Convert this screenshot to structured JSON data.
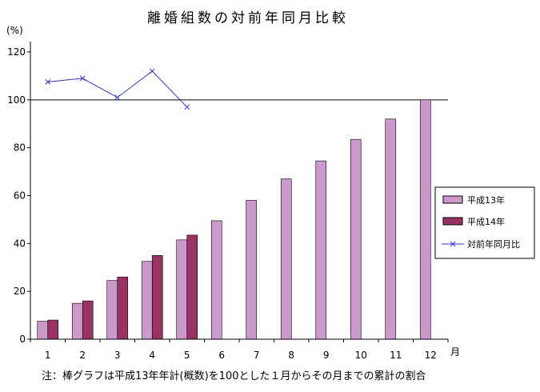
{
  "chart_data": {
    "type": "bar",
    "title": "離婚組数の対前年同月比較",
    "y_unit_label": "(%)",
    "x_unit_label": "月",
    "note": "注：棒グラフは平成13年年計(概数)を100とした１月からその月までの累計の割合",
    "categories": [
      "1",
      "2",
      "3",
      "4",
      "5",
      "6",
      "7",
      "8",
      "9",
      "10",
      "11",
      "12"
    ],
    "ylim": [
      0,
      120
    ],
    "yticks": [
      0,
      20,
      40,
      60,
      80,
      100,
      120
    ],
    "reference_line": 100,
    "grid": false,
    "legend_position": "right",
    "series": [
      {
        "name": "平成13年",
        "kind": "bar",
        "color": "#cc99cc",
        "values": [
          7.5,
          15,
          24.5,
          32.5,
          41.5,
          49.5,
          58,
          67,
          74.5,
          83.5,
          92,
          100
        ]
      },
      {
        "name": "平成14年",
        "kind": "bar",
        "color": "#993366",
        "values": [
          8,
          16,
          26,
          35,
          43.5,
          null,
          null,
          null,
          null,
          null,
          null,
          null
        ]
      },
      {
        "name": "対前年同月比",
        "kind": "line",
        "color": "#3333cc",
        "marker": "x",
        "values": [
          107.5,
          109,
          101,
          112,
          97,
          null,
          null,
          null,
          null,
          null,
          null,
          null
        ]
      }
    ]
  }
}
